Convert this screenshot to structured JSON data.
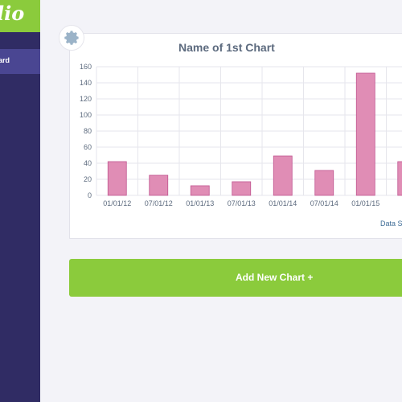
{
  "sidebar": {
    "logo_text": "lio",
    "nav_active_label": "ard"
  },
  "chart_card": {
    "gear_icon": "gear-icon",
    "data_source_label": "Data So"
  },
  "chart_data": {
    "type": "bar",
    "title": "Name of 1st Chart",
    "categories": [
      "01/01/12",
      "07/01/12",
      "01/01/13",
      "07/01/13",
      "01/01/14",
      "07/01/14",
      "01/01/15",
      ""
    ],
    "values": [
      42,
      25,
      12,
      17,
      49,
      31,
      152,
      42
    ],
    "y_ticks": [
      0,
      20,
      40,
      60,
      80,
      100,
      120,
      140,
      160
    ],
    "ylim": [
      0,
      160
    ],
    "grid": true,
    "bar_color": "#e08db5",
    "bar_stroke": "#c0548f"
  },
  "actions": {
    "add_chart_label": "Add New Chart  +"
  },
  "colors": {
    "accent_green": "#8bcb3c",
    "sidebar_bg": "#302c64",
    "sidebar_active": "#4a4692",
    "title_text": "#5c6a7e"
  }
}
